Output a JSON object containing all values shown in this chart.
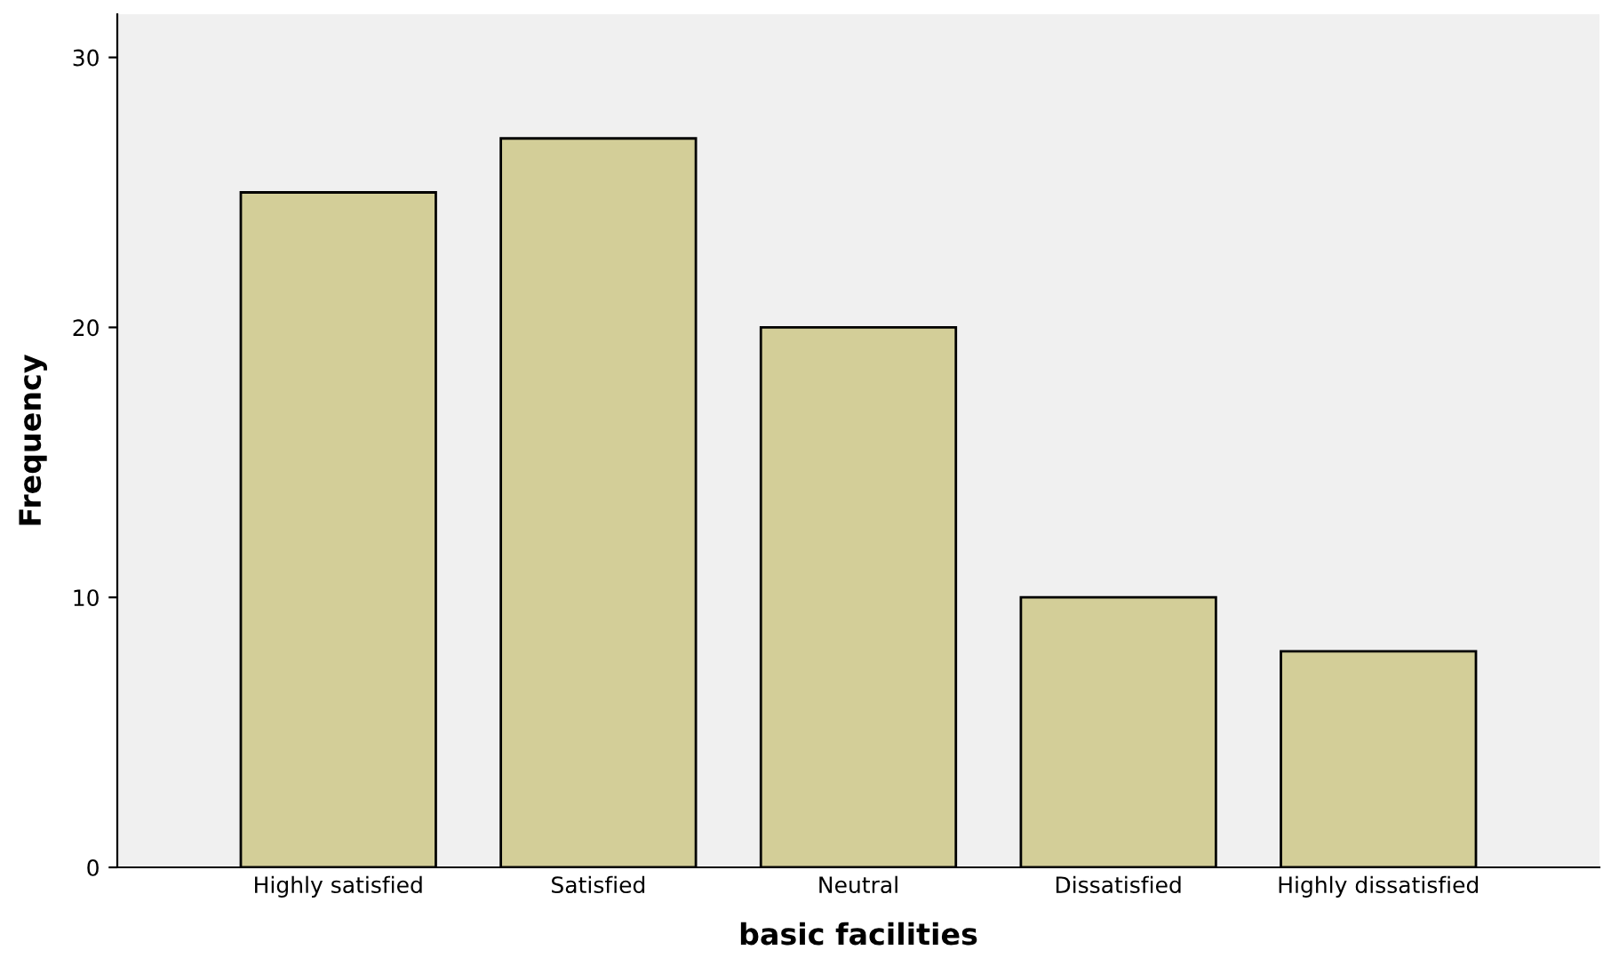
{
  "chart_data": {
    "type": "bar",
    "xlabel": "basic facilities",
    "ylabel": "Frequency",
    "categories": [
      "Highly satisfied",
      "Satisfied",
      "Neutral",
      "Dissatisfied",
      "Highly dissatisfied"
    ],
    "values": [
      25,
      27,
      20,
      10,
      8
    ],
    "color": "#d3ce98",
    "ylim": [
      0,
      31.6
    ],
    "yticks": [
      0,
      10,
      20,
      30
    ],
    "grid": false,
    "legend": false
  }
}
